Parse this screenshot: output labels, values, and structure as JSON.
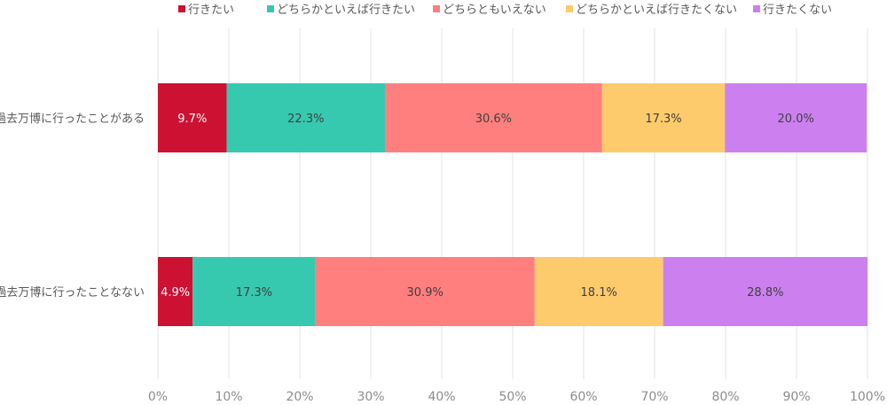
{
  "chart_data": {
    "type": "bar",
    "orientation": "horizontal",
    "stacked": "percent",
    "categories": [
      "過去万博に行ったことがある",
      "過去万博に行ったことなない"
    ],
    "series": [
      {
        "name": "行きたい",
        "values": [
          9.7,
          4.9
        ],
        "labels": [
          "9.7%",
          "4.9%"
        ],
        "color": "#cc1133",
        "label_color": "#ffffff"
      },
      {
        "name": "どちらかといえば行きたい",
        "values": [
          22.3,
          17.3
        ],
        "labels": [
          "22.3%",
          "17.3%"
        ],
        "color": "#36c9b0",
        "label_color": "#404040"
      },
      {
        "name": "どちらともいえない",
        "values": [
          30.6,
          30.9
        ],
        "labels": [
          "30.6%",
          "30.9%"
        ],
        "color": "#ff7f7f",
        "label_color": "#404040"
      },
      {
        "name": "どちらかといえば行きたくない",
        "values": [
          17.3,
          18.1
        ],
        "labels": [
          "17.3%",
          "18.1%"
        ],
        "color": "#fecb6c",
        "label_color": "#404040"
      },
      {
        "name": "行きたくない",
        "values": [
          20.0,
          28.8
        ],
        "labels": [
          "20.0%",
          "28.8%"
        ],
        "color": "#cc80ef",
        "label_color": "#404040"
      }
    ],
    "xlim": [
      0,
      100
    ],
    "xticks": [
      "0%",
      "10%",
      "20%",
      "30%",
      "40%",
      "50%",
      "60%",
      "70%",
      "80%",
      "90%",
      "100%"
    ],
    "grid": true,
    "legend_position": "top"
  }
}
